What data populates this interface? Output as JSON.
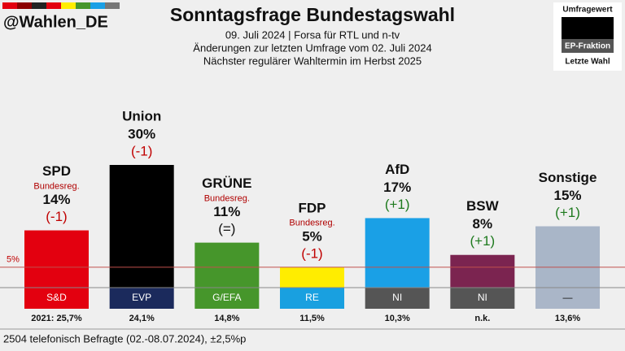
{
  "chart_data": {
    "type": "bar",
    "handle": "@Wahlen_DE",
    "title": "Sonntagsfrage Bundestagswahl",
    "subtitle": "09. Juli 2024 | Forsa für RTL und n-tv",
    "notes": [
      "Änderungen zur letzten Umfrage vom 02. Juli 2024",
      "Nächster regulärer Wahltermin im Herbst 2025"
    ],
    "legend": {
      "poll": "Umfragewert",
      "group": "EP-Fraktion",
      "last": "Letzte Wahl"
    },
    "categories": [
      "SPD",
      "Union",
      "GRÜNE",
      "FDP",
      "AfD",
      "BSW",
      "Sonstige"
    ],
    "values": [
      14,
      30,
      11,
      5,
      17,
      8,
      15
    ],
    "value_labels": [
      "14%",
      "30%",
      "11%",
      "5%",
      "17%",
      "8%",
      "15%"
    ],
    "colors": [
      "#e3000f",
      "#000000",
      "#46962b",
      "#ffed00",
      "#1aa0e6",
      "#7b2450",
      "#a9b6c8"
    ],
    "government_labels": [
      "Bundesreg.",
      null,
      "Bundesreg.",
      "Bundesreg.",
      null,
      null,
      null
    ],
    "changes": [
      -1,
      -1,
      0,
      -1,
      1,
      1,
      1
    ],
    "change_labels": [
      "(-1)",
      "(-1)",
      "(=)",
      "(-1)",
      "(+1)",
      "(+1)",
      "(+1)"
    ],
    "ep_groups": [
      "S&D",
      "EVP",
      "G/EFA",
      "RE",
      "NI",
      "NI",
      "—"
    ],
    "ep_colors": [
      "#e3000f",
      "#1b2a5c",
      "#46962b",
      "#19a0e0",
      "#555555",
      "#555555",
      "#aab6c8"
    ],
    "last_election": [
      25.7,
      24.1,
      14.8,
      11.5,
      10.3,
      null,
      13.6
    ],
    "last_election_labels": [
      "2021: 25,7%",
      "24,1%",
      "14,8%",
      "11,5%",
      "10,3%",
      "n.k.",
      "13,6%"
    ],
    "threshold": {
      "value": 5,
      "label": "5%"
    },
    "ylim": [
      0,
      30
    ],
    "footer": "2504 telefonisch Befragte (02.-08.07.2024), ±2,5%p"
  }
}
